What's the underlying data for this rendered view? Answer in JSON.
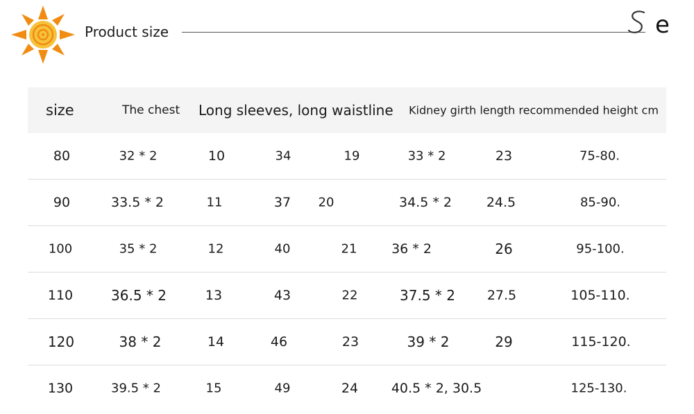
{
  "header": {
    "title": "Product size",
    "brand_letter": "e"
  },
  "colors": {
    "sun_orange": "#f08c12",
    "sun_yellow": "#f7c23a",
    "header_band": "#f4f4f4",
    "row_divider": "#dcdcdc"
  },
  "table": {
    "headers": [
      "size",
      "The chest",
      "Long sleeves, long waistline",
      "Kidney girth length recommended height cm"
    ],
    "rows": [
      [
        "80",
        "32 * 2",
        "10",
        "34",
        "19",
        "33 * 2",
        "23",
        "75-80."
      ],
      [
        "90",
        "33.5 * 2",
        "11",
        "37",
        "20",
        "34.5 * 2",
        "24.5",
        "85-90."
      ],
      [
        "100",
        "35 * 2",
        "12",
        "40",
        "21",
        "36 * 2",
        "26",
        "95-100."
      ],
      [
        "110",
        "36.5 * 2",
        "13",
        "43",
        "22",
        "37.5 * 2",
        "27.5",
        "105-110."
      ],
      [
        "120",
        "38 * 2",
        "14",
        "46",
        "23",
        "39 * 2",
        "29",
        "115-120."
      ],
      [
        "130",
        "39.5 * 2",
        "15",
        "49",
        "24",
        "40.5 * 2, 30.5",
        "",
        "125-130."
      ]
    ]
  }
}
